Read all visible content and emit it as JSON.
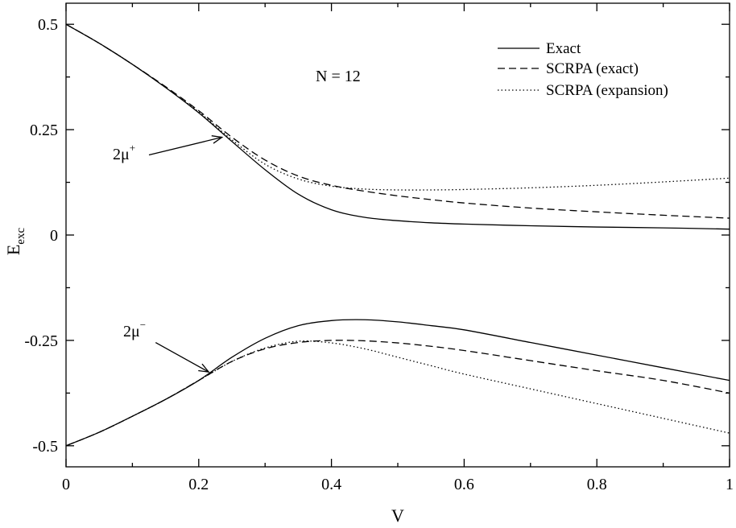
{
  "chart_data": {
    "type": "line",
    "title": "",
    "xlabel": "V",
    "ylabel": {
      "main": "E",
      "sub": "exc"
    },
    "xlim": [
      0,
      1
    ],
    "ylim": [
      -0.55,
      0.55
    ],
    "x_ticks": [
      0,
      0.2,
      0.4,
      0.6,
      0.8,
      1
    ],
    "x_tick_labels": [
      "0",
      "0.2",
      "0.4",
      "0.6",
      "0.8",
      "1"
    ],
    "y_ticks": [
      -0.5,
      -0.25,
      0,
      0.25,
      0.5
    ],
    "y_tick_labels": [
      "-0.5",
      "-0.25",
      "0",
      "0.25",
      "0.5"
    ],
    "grid": false,
    "legend_position": "top-right",
    "legend": [
      {
        "label": "Exact",
        "style": "solid"
      },
      {
        "label": "SCRPA (exact)",
        "style": "dashed"
      },
      {
        "label": "SCRPA (expansion)",
        "style": "dotted"
      }
    ],
    "annotations": {
      "n_label": "N = 12",
      "mu_plus": {
        "base": "2μ",
        "sup": "+",
        "points_to": [
          0.235,
          0.232
        ],
        "from": [
          0.125,
          0.19
        ]
      },
      "mu_minus": {
        "base": "2μ",
        "sup": "−",
        "points_to": [
          0.215,
          -0.325
        ],
        "from": [
          0.135,
          -0.255
        ]
      }
    },
    "series": [
      {
        "name": "Exact",
        "style": "solid",
        "branch": "upper",
        "x": [
          0,
          0.05,
          0.1,
          0.15,
          0.2,
          0.25,
          0.3,
          0.35,
          0.4,
          0.45,
          0.5,
          0.55,
          0.6,
          0.7,
          0.8,
          0.9,
          1.0
        ],
        "y": [
          0.5,
          0.455,
          0.405,
          0.35,
          0.29,
          0.222,
          0.155,
          0.097,
          0.06,
          0.042,
          0.034,
          0.029,
          0.026,
          0.022,
          0.019,
          0.017,
          0.014
        ]
      },
      {
        "name": "SCRPA (exact)",
        "style": "dashed",
        "branch": "upper",
        "x": [
          0,
          0.05,
          0.1,
          0.15,
          0.2,
          0.25,
          0.3,
          0.35,
          0.4,
          0.45,
          0.5,
          0.55,
          0.6,
          0.7,
          0.8,
          0.9,
          1.0
        ],
        "y": [
          0.5,
          0.455,
          0.405,
          0.352,
          0.295,
          0.232,
          0.178,
          0.14,
          0.118,
          0.104,
          0.093,
          0.084,
          0.076,
          0.064,
          0.055,
          0.047,
          0.04
        ]
      },
      {
        "name": "SCRPA (expansion)",
        "style": "dotted",
        "branch": "upper",
        "x": [
          0,
          0.05,
          0.1,
          0.15,
          0.2,
          0.25,
          0.3,
          0.35,
          0.4,
          0.45,
          0.5,
          0.55,
          0.6,
          0.7,
          0.8,
          0.9,
          1.0
        ],
        "y": [
          0.5,
          0.455,
          0.405,
          0.35,
          0.292,
          0.226,
          0.168,
          0.133,
          0.116,
          0.109,
          0.107,
          0.107,
          0.108,
          0.112,
          0.118,
          0.126,
          0.135
        ]
      },
      {
        "name": "Exact",
        "style": "solid",
        "branch": "lower",
        "x": [
          0,
          0.05,
          0.1,
          0.15,
          0.2,
          0.25,
          0.3,
          0.35,
          0.4,
          0.45,
          0.5,
          0.55,
          0.6,
          0.7,
          0.8,
          0.9,
          1.0
        ],
        "y": [
          -0.5,
          -0.468,
          -0.43,
          -0.39,
          -0.345,
          -0.29,
          -0.245,
          -0.215,
          -0.203,
          -0.201,
          -0.206,
          -0.215,
          -0.225,
          -0.255,
          -0.285,
          -0.315,
          -0.345
        ]
      },
      {
        "name": "SCRPA (exact)",
        "style": "dashed",
        "branch": "lower",
        "x": [
          0,
          0.05,
          0.1,
          0.15,
          0.2,
          0.25,
          0.3,
          0.35,
          0.4,
          0.45,
          0.5,
          0.55,
          0.6,
          0.7,
          0.8,
          0.9,
          1.0
        ],
        "y": [
          -0.5,
          -0.468,
          -0.43,
          -0.39,
          -0.345,
          -0.3,
          -0.27,
          -0.255,
          -0.25,
          -0.251,
          -0.256,
          -0.264,
          -0.274,
          -0.298,
          -0.322,
          -0.345,
          -0.375
        ]
      },
      {
        "name": "SCRPA (expansion)",
        "style": "dotted",
        "branch": "lower",
        "x": [
          0,
          0.05,
          0.1,
          0.15,
          0.2,
          0.25,
          0.3,
          0.35,
          0.4,
          0.45,
          0.5,
          0.55,
          0.6,
          0.7,
          0.8,
          0.9,
          1.0
        ],
        "y": [
          -0.5,
          -0.468,
          -0.43,
          -0.39,
          -0.345,
          -0.3,
          -0.268,
          -0.252,
          -0.256,
          -0.27,
          -0.29,
          -0.31,
          -0.33,
          -0.365,
          -0.4,
          -0.435,
          -0.47
        ]
      }
    ]
  }
}
